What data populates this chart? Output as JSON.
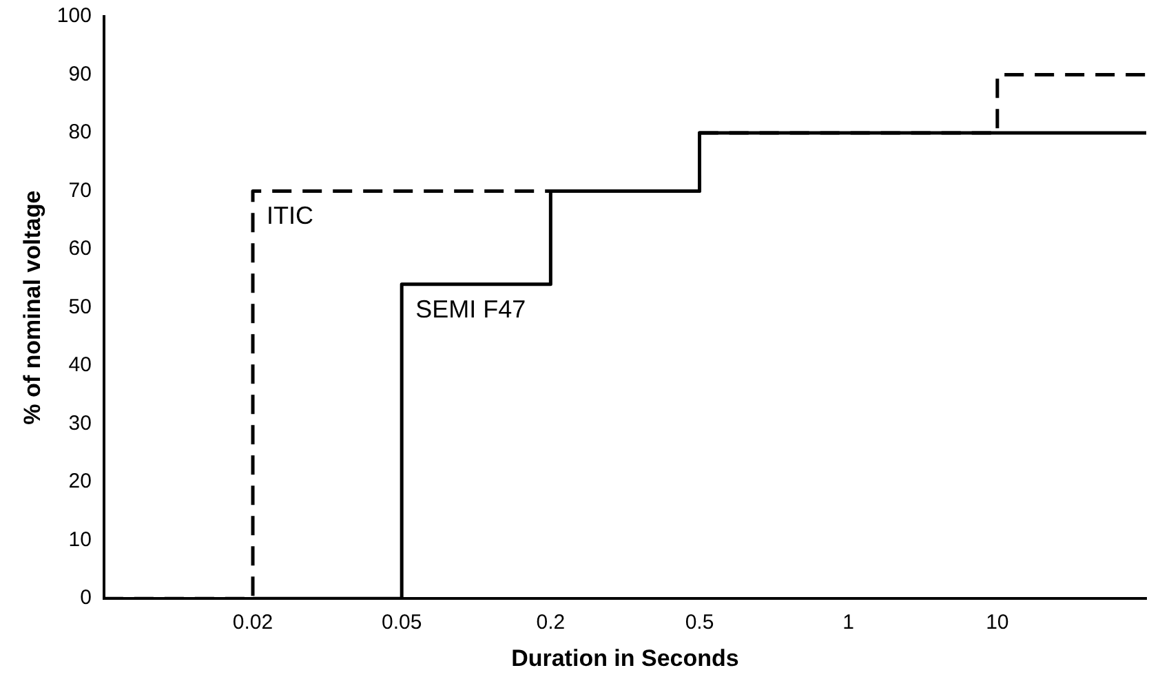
{
  "chart_data": {
    "type": "step",
    "xlabel": "Duration in Seconds",
    "ylabel": "% of nominal voltage",
    "categories": [
      null,
      "0.02",
      "0.05",
      "0.2",
      "0.5",
      "1",
      "10",
      null
    ],
    "ylim": [
      0,
      100
    ],
    "yticks": [
      0,
      10,
      20,
      30,
      40,
      50,
      60,
      70,
      80,
      90,
      100
    ],
    "grid": false,
    "legend": false,
    "series": [
      {
        "name": "ITIC",
        "color": "#000000",
        "line_style": "dashed",
        "values": [
          0,
          70,
          70,
          70,
          80,
          80,
          90,
          90
        ]
      },
      {
        "name": "SEMI F47",
        "color": "#000000",
        "line_style": "solid",
        "values": [
          null,
          0,
          54,
          70,
          80,
          80,
          80,
          80
        ]
      }
    ]
  }
}
